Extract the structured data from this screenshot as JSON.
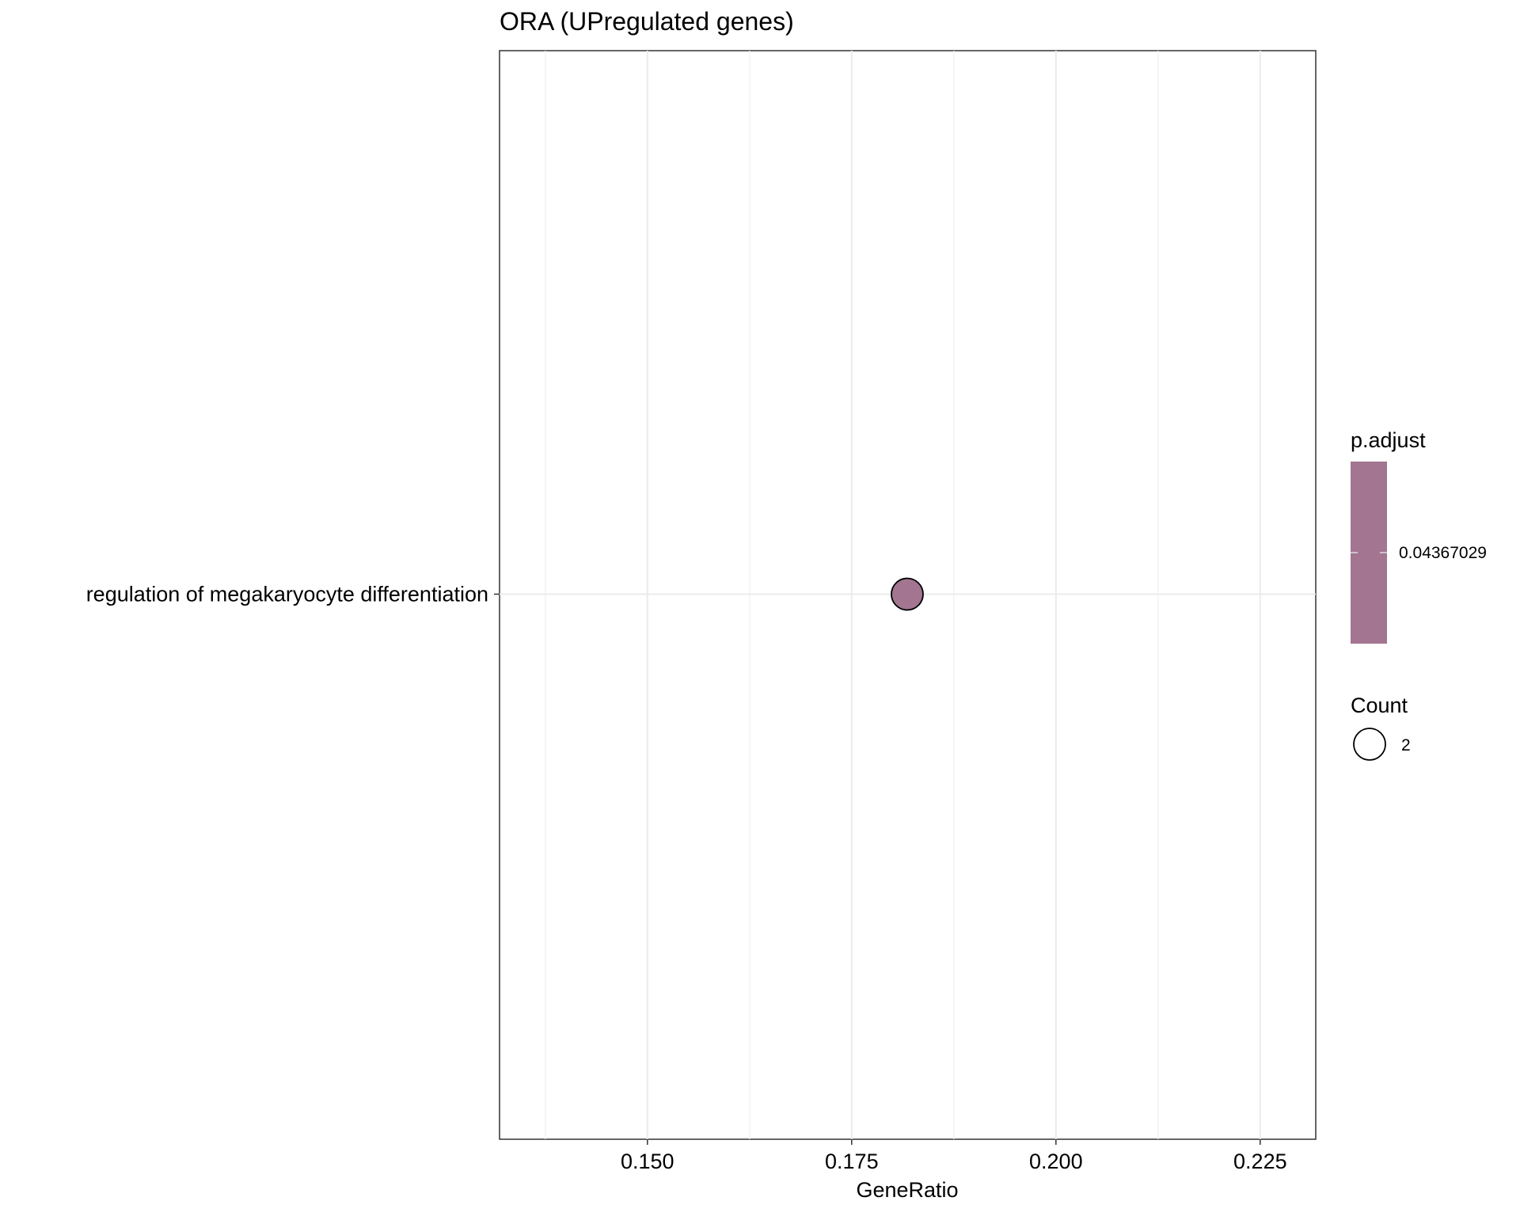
{
  "chart_data": {
    "type": "scatter",
    "title": "ORA (UPregulated genes)",
    "xlabel": "GeneRatio",
    "ylabel": "",
    "xlim": [
      0.1319,
      0.2318
    ],
    "x_ticks": [
      "0.150",
      "0.175",
      "0.200",
      "0.225"
    ],
    "x_tick_values": [
      0.15,
      0.175,
      0.2,
      0.225
    ],
    "categories": [
      "regulation of megakaryocyte differentiation"
    ],
    "points": [
      {
        "term": "regulation of megakaryocyte differentiation",
        "x": 0.1818,
        "count": 2,
        "p_adjust": 0.04367029,
        "color": "#a37590"
      }
    ],
    "grid": true,
    "legend": {
      "placement": "right",
      "color_title": "p.adjust",
      "color_label": "0.04367029",
      "color": "#a37590",
      "size_title": "Count",
      "size_label": "2"
    }
  }
}
